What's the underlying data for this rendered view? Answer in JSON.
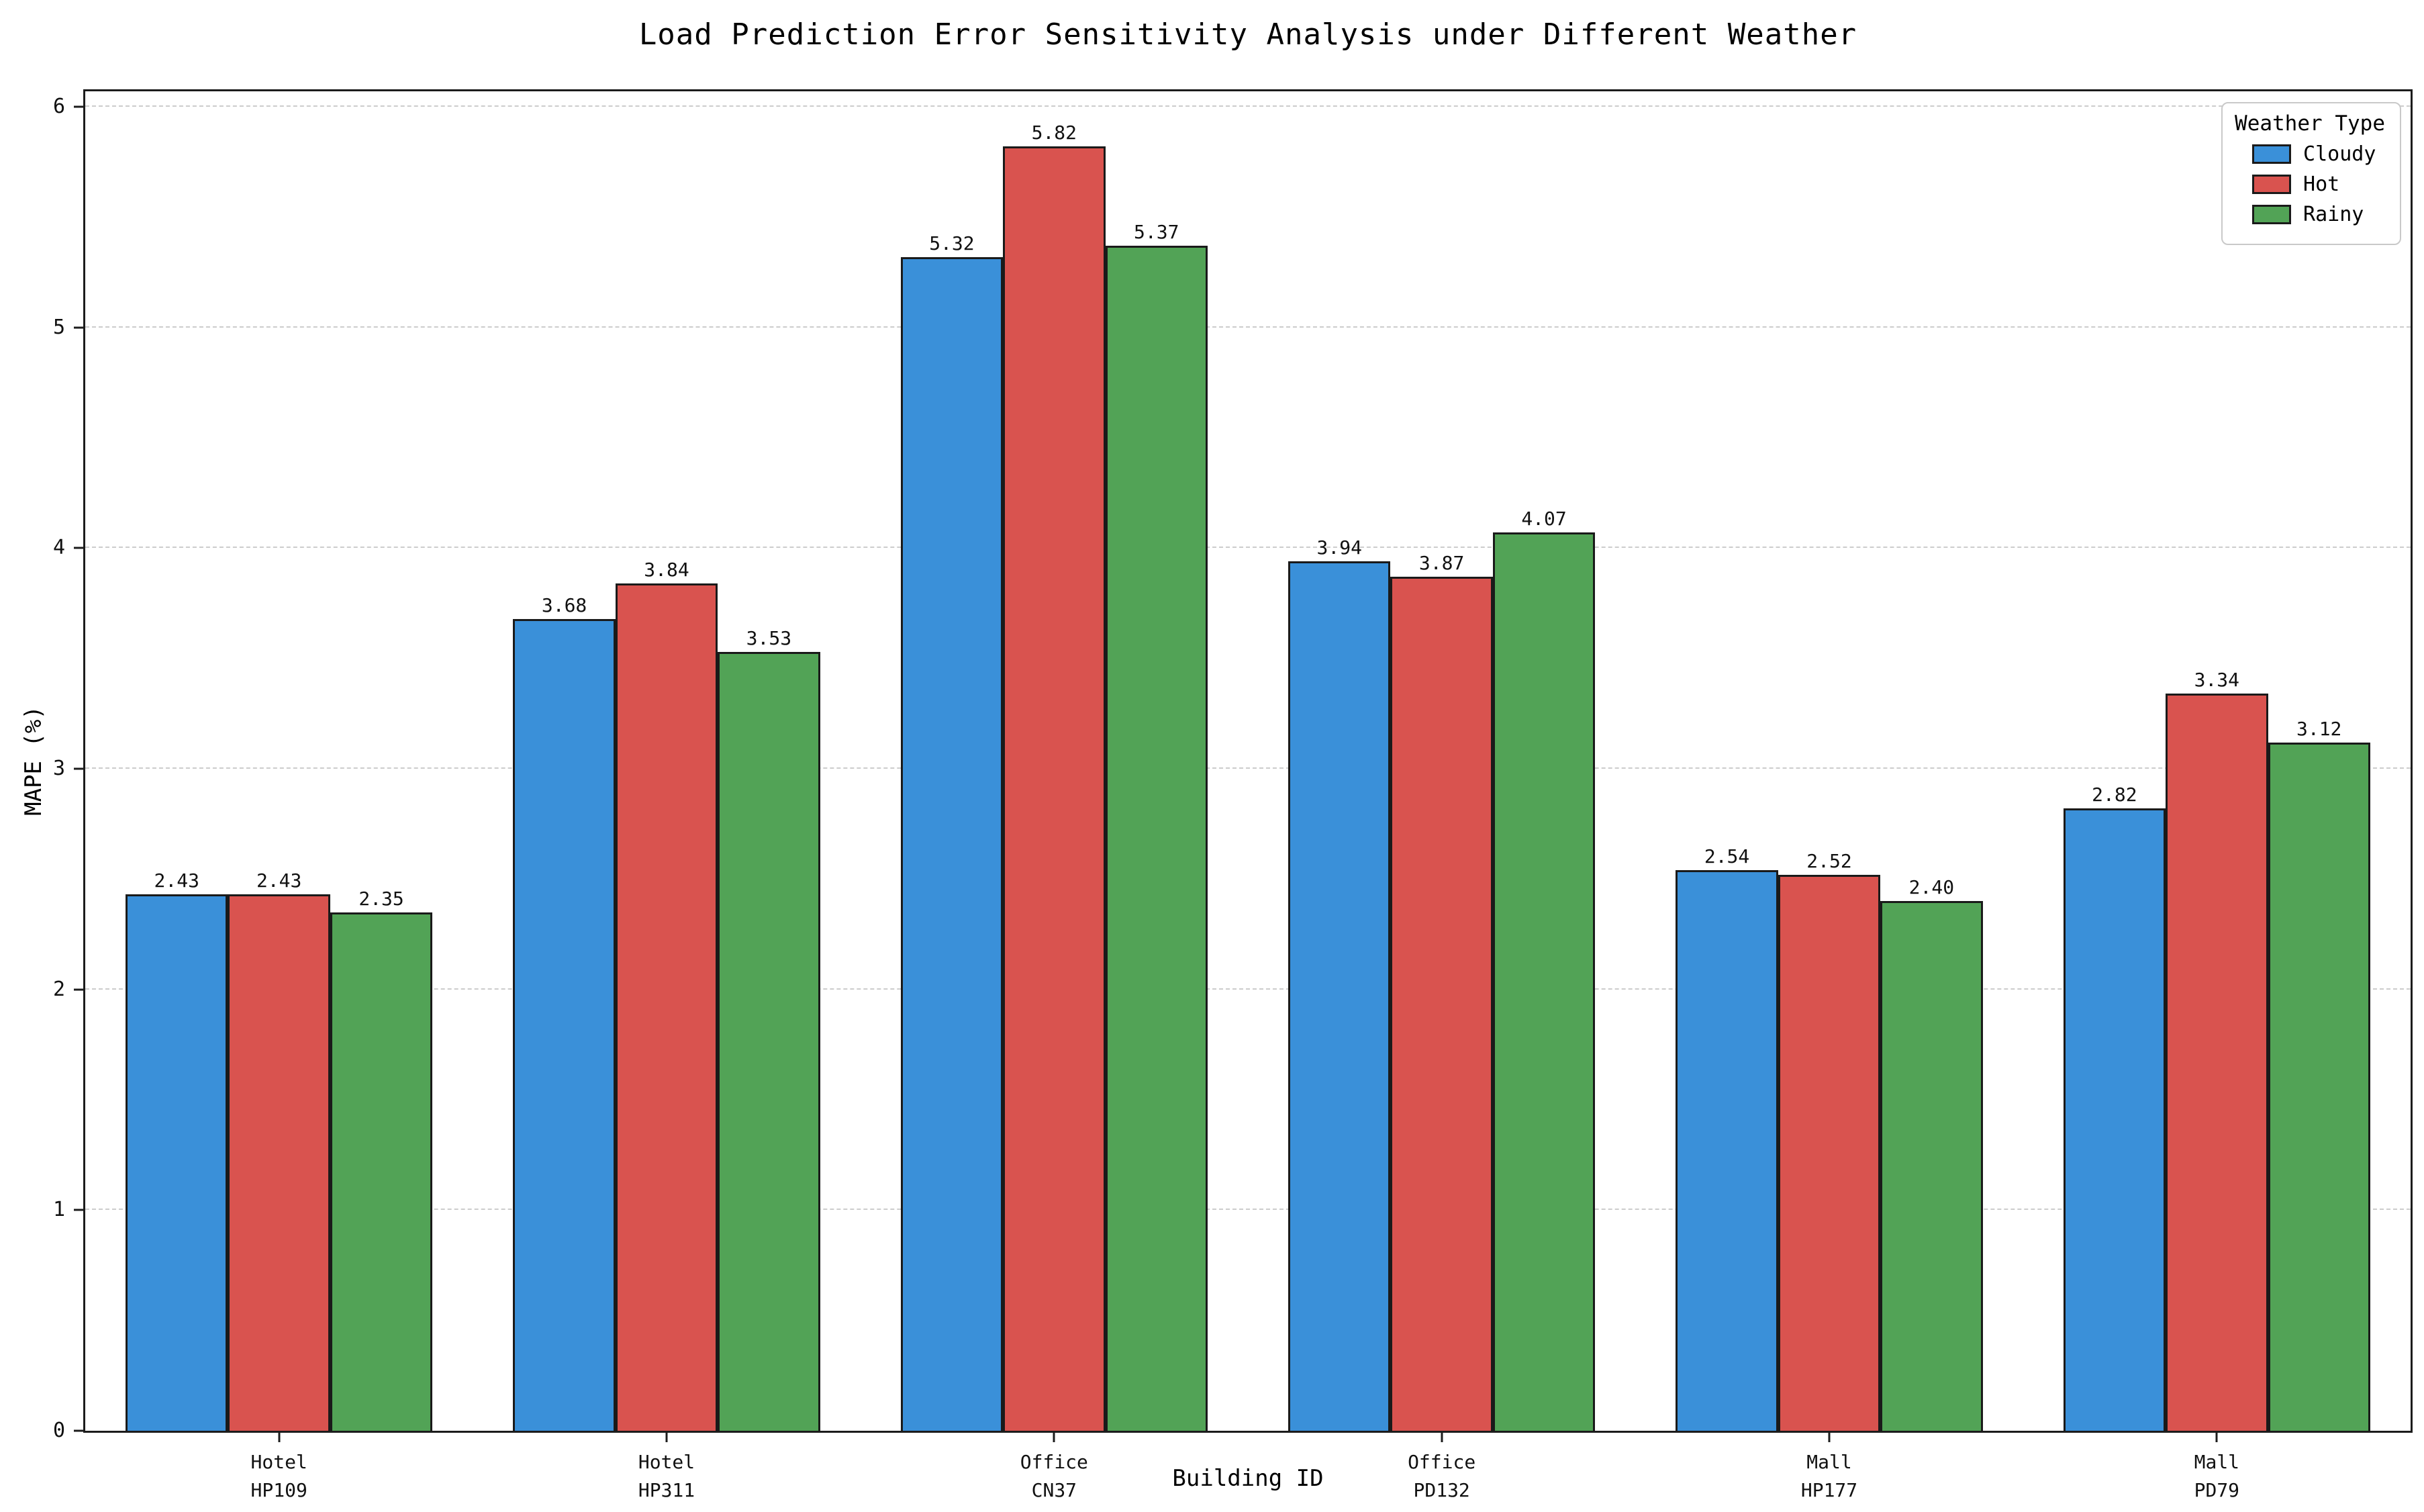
{
  "figure": {
    "background": "#ffffff",
    "text_color": "#000000",
    "spine_color": "#1c1c1c",
    "grid_color": "#cccccc"
  },
  "chart_data": {
    "type": "bar",
    "title": "Load Prediction Error Sensitivity Analysis under Different Weather",
    "xlabel": "Building ID",
    "ylabel": "MAPE (%)",
    "ylim": [
      0,
      6.07
    ],
    "yticks": [
      0,
      1,
      2,
      3,
      4,
      5,
      6
    ],
    "grid": "horizontal dashed",
    "legend_title": "Weather Type",
    "legend_position": "top-right",
    "bar_edge_color": "#1a1a1a",
    "bar_value_labels": true,
    "categories": [
      {
        "type": "Hotel",
        "id": "HP109"
      },
      {
        "type": "Hotel",
        "id": "HP311"
      },
      {
        "type": "Office",
        "id": "CN37"
      },
      {
        "type": "Office",
        "id": "PD132"
      },
      {
        "type": "Mall",
        "id": "HP177"
      },
      {
        "type": "Mall",
        "id": "PD79"
      }
    ],
    "series": [
      {
        "name": "Cloudy",
        "color": "#3A90D9",
        "values": [
          2.43,
          3.68,
          5.32,
          3.94,
          2.54,
          2.82
        ]
      },
      {
        "name": "Hot",
        "color": "#D9534F",
        "values": [
          2.43,
          3.84,
          5.82,
          3.87,
          2.52,
          3.34
        ]
      },
      {
        "name": "Rainy",
        "color": "#52A356",
        "values": [
          2.35,
          3.53,
          5.37,
          4.07,
          2.4,
          3.12
        ]
      }
    ]
  }
}
